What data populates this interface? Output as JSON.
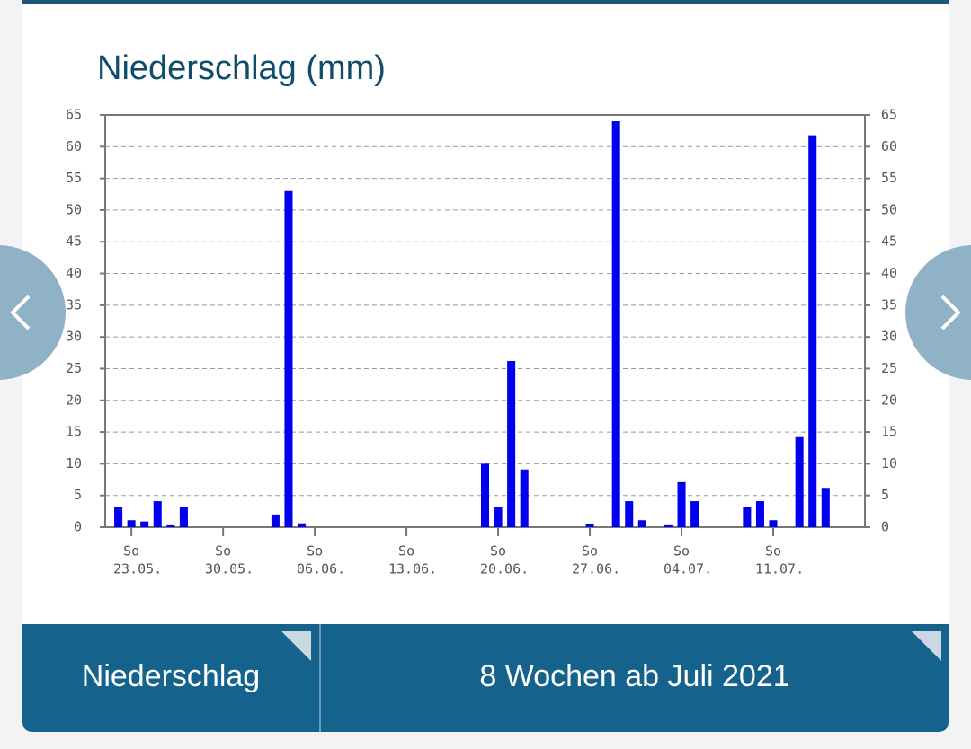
{
  "chart_data": {
    "type": "bar",
    "title": "Niederschlag (mm)",
    "color": "#0000ee",
    "grid": true,
    "x": [
      "22.05.",
      "23.05.",
      "24.05.",
      "25.05.",
      "26.05.",
      "27.05.",
      "03.06.",
      "04.06.",
      "05.06.",
      "19.06.",
      "20.06.",
      "21.06.",
      "22.06.",
      "27.06.",
      "29.06.",
      "30.06.",
      "01.07.",
      "03.07.",
      "04.07.",
      "05.07.",
      "09.07.",
      "10.07.",
      "11.07.",
      "13.07.",
      "14.07.",
      "15.07."
    ],
    "values": [
      3.2,
      1.1,
      0.9,
      4.1,
      0.3,
      3.2,
      2,
      53,
      0.6,
      10,
      3.2,
      26.2,
      9.1,
      0.5,
      64,
      4.1,
      1.1,
      0.3,
      7.1,
      4.1,
      3.2,
      4.1,
      1.1,
      14.2,
      61.8,
      6.2
    ],
    "xlim": [
      "21.05.",
      "18.07."
    ],
    "xticks": [
      {
        "weekday": "So",
        "date": "23.05."
      },
      {
        "weekday": "So",
        "date": "30.05."
      },
      {
        "weekday": "So",
        "date": "06.06."
      },
      {
        "weekday": "So",
        "date": "13.06."
      },
      {
        "weekday": "So",
        "date": "20.06."
      },
      {
        "weekday": "So",
        "date": "27.06."
      },
      {
        "weekday": "So",
        "date": "04.07."
      },
      {
        "weekday": "So",
        "date": "11.07."
      }
    ],
    "ylim": [
      0,
      65
    ],
    "yticks": [
      0,
      5,
      10,
      15,
      20,
      25,
      30,
      35,
      40,
      45,
      50,
      55,
      60,
      65
    ]
  },
  "footer": {
    "parameter": "Niederschlag",
    "period": "8 Wochen ab Juli 2021"
  }
}
